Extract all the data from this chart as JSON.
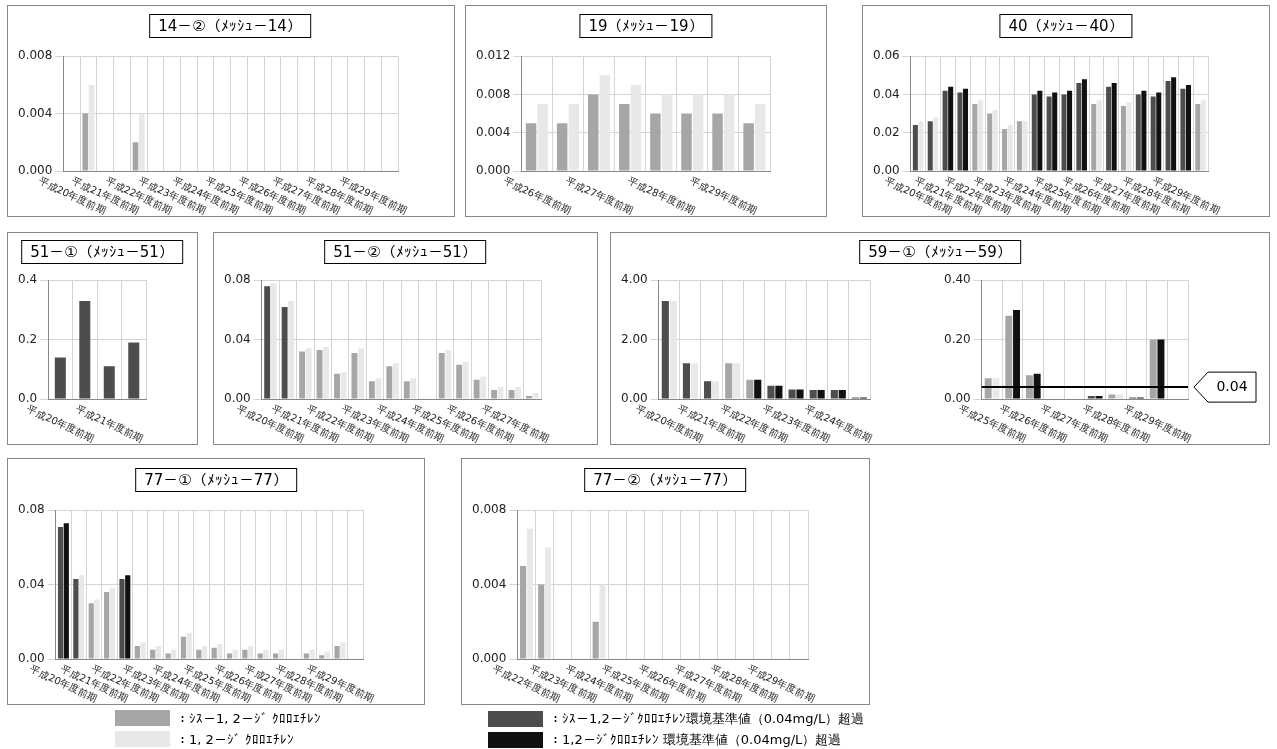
{
  "chart_data": [
    {
      "type": "bar",
      "title": "14－②（ﾒｯｼｭ－14）",
      "categories": [
        "平成20年度前期",
        null,
        "平成21年度前期",
        null,
        "平成22年度前期",
        null,
        "平成23年度前期",
        null,
        "平成24年度前期",
        null,
        "平成25年度前期",
        null,
        "平成26年度前期",
        null,
        "平成27年度前期",
        null,
        "平成28年度前期",
        null,
        "平成29年度前期",
        null
      ],
      "ylim": [
        0,
        0.008
      ],
      "yticks": [
        {
          "value": 0,
          "label": "0.000"
        },
        0.004,
        0.008
      ],
      "grid": true,
      "series": [
        {
          "color": "#a6a6a6",
          "values": [
            null,
            0.004,
            null,
            null,
            0.002,
            null,
            null,
            null,
            null,
            null,
            null,
            null,
            null,
            null,
            null,
            null,
            null,
            null,
            null,
            null
          ]
        },
        {
          "color": "#e8e8e8",
          "values": [
            null,
            0.006,
            null,
            null,
            0.004,
            null,
            null,
            null,
            null,
            null,
            null,
            null,
            null,
            null,
            null,
            null,
            null,
            null,
            null,
            null
          ]
        }
      ]
    },
    {
      "type": "bar",
      "title": "19（ﾒｯｼｭ－19）",
      "categories": [
        "平成26年度前期",
        null,
        "平成27年度前期",
        null,
        "平成28年度前期",
        null,
        "平成29年度前期",
        null
      ],
      "ylim": [
        0,
        0.012
      ],
      "yticks": [
        {
          "value": 0,
          "label": "0.000"
        },
        0.004,
        0.008,
        0.012
      ],
      "grid": true,
      "series": [
        {
          "color": "#a6a6a6",
          "values": [
            0.005,
            0.005,
            0.008,
            0.007,
            0.006,
            0.006,
            0.006,
            0.005
          ]
        },
        {
          "color": "#e8e8e8",
          "values": [
            0.007,
            0.007,
            0.01,
            0.009,
            0.008,
            0.008,
            0.008,
            0.007
          ]
        }
      ]
    },
    {
      "type": "bar",
      "title": "40（ﾒｯｼｭ－40）",
      "categories": [
        "平成20年度前期",
        null,
        "平成21年度前期",
        null,
        "平成22年度前期",
        null,
        "平成23年度前期",
        null,
        "平成24年度前期",
        null,
        "平成25年度前期",
        null,
        "平成26年度前期",
        null,
        "平成27年度前期",
        null,
        "平成28年度前期",
        null,
        "平成29年度前期",
        null
      ],
      "ylim": [
        0,
        0.06
      ],
      "yticks": [
        {
          "value": 0,
          "label": "0.00"
        },
        0.02,
        0.04,
        0.06
      ],
      "grid": true,
      "series": [
        {
          "colors": [
            "#4d4d4d",
            "#4d4d4d",
            "#4d4d4d",
            "#4d4d4d",
            "#a6a6a6",
            "#a6a6a6",
            "#a6a6a6",
            "#a6a6a6",
            "#4d4d4d",
            "#4d4d4d",
            "#4d4d4d",
            "#4d4d4d",
            "#a6a6a6",
            "#4d4d4d",
            "#a6a6a6",
            "#4d4d4d",
            "#4d4d4d",
            "#4d4d4d",
            "#4d4d4d",
            "#a6a6a6"
          ],
          "values": [
            0.024,
            0.026,
            0.042,
            0.041,
            0.035,
            0.03,
            0.022,
            0.026,
            0.04,
            0.039,
            0.04,
            0.046,
            0.035,
            0.044,
            0.034,
            0.04,
            0.039,
            0.047,
            0.043,
            0.035
          ]
        },
        {
          "colors": [
            "#e8e8e8",
            "#e8e8e8",
            "#111111",
            "#111111",
            "#e8e8e8",
            "#e8e8e8",
            "#e8e8e8",
            "#e8e8e8",
            "#111111",
            "#111111",
            "#111111",
            "#111111",
            "#e8e8e8",
            "#111111",
            "#e8e8e8",
            "#111111",
            "#111111",
            "#111111",
            "#111111",
            "#e8e8e8"
          ],
          "values": [
            0.026,
            0.028,
            0.044,
            0.043,
            0.037,
            0.032,
            0.024,
            0.026,
            0.042,
            0.041,
            0.042,
            0.048,
            0.037,
            0.046,
            0.036,
            0.042,
            0.041,
            0.049,
            0.045,
            0.037
          ]
        }
      ]
    },
    {
      "type": "bar",
      "title": "51－①（ﾒｯｼｭ－51）",
      "categories": [
        "平成20年度前期",
        null,
        "平成21年度前期",
        null
      ],
      "ylim": [
        0,
        0.4
      ],
      "yticks": [
        {
          "value": 0,
          "label": "0.0"
        },
        0.2,
        0.4
      ],
      "grid": true,
      "values": [
        0.14,
        0.33,
        0.11,
        0.19
      ],
      "color": "#4d4d4d"
    },
    {
      "type": "bar",
      "title": "51－②（ﾒｯｼｭ－51）",
      "categories": [
        "平成20年度前期",
        null,
        "平成21年度前期",
        null,
        "平成22年度前期",
        null,
        "平成23年度前期",
        null,
        "平成24年度前期",
        null,
        "平成25年度前期",
        null,
        "平成26年度前期",
        null,
        "平成27年度前期",
        null
      ],
      "ylim": [
        0,
        0.08
      ],
      "yticks": [
        {
          "value": 0,
          "label": "0.00"
        },
        0.04,
        0.08
      ],
      "grid": true,
      "series": [
        {
          "colors": [
            "#4d4d4d",
            "#4d4d4d",
            "#a6a6a6",
            "#a6a6a6",
            "#a6a6a6",
            "#a6a6a6",
            "#a6a6a6",
            "#a6a6a6",
            "#a6a6a6",
            "#a6a6a6",
            "#a6a6a6",
            "#a6a6a6",
            "#a6a6a6",
            "#a6a6a6",
            "#a6a6a6",
            "#a6a6a6"
          ],
          "values": [
            0.076,
            0.062,
            0.032,
            0.033,
            0.017,
            0.031,
            0.012,
            0.022,
            0.012,
            null,
            0.031,
            0.023,
            0.013,
            0.006,
            0.006,
            0.002
          ]
        },
        {
          "color": "#e8e8e8",
          "values": [
            0.078,
            0.066,
            0.034,
            0.035,
            0.018,
            0.034,
            0.014,
            0.024,
            0.014,
            null,
            0.033,
            0.025,
            0.015,
            0.008,
            0.008,
            0.004
          ]
        }
      ]
    },
    {
      "type": "bar",
      "title": "59－①（ﾒｯｼｭ－59）",
      "categories": [
        "平成20年度前期",
        null,
        "平成21年度前期",
        null,
        "平成22年度前期",
        null,
        "平成23年度前期",
        null,
        "平成24年度前期",
        null
      ],
      "ylim": [
        0,
        4
      ],
      "yticks": [
        {
          "value": 0,
          "label": "0.00"
        },
        {
          "value": 2,
          "label": "2.00"
        },
        {
          "value": 4,
          "label": "4.00"
        }
      ],
      "grid": true,
      "series": [
        {
          "colors": [
            "#4d4d4d",
            "#4d4d4d",
            "#4d4d4d",
            "#a6a6a6",
            "#a6a6a6",
            "#4d4d4d",
            "#4d4d4d",
            "#4d4d4d",
            "#4d4d4d",
            "#4d4d4d"
          ],
          "values": [
            3.3,
            1.2,
            0.6,
            1.2,
            0.65,
            0.45,
            0.32,
            0.3,
            0.3,
            0.05
          ]
        },
        {
          "colors": [
            "#e8e8e8",
            "#e8e8e8",
            "#e8e8e8",
            "#e8e8e8",
            "#111111",
            "#111111",
            "#111111",
            "#111111",
            "#111111",
            "#111111"
          ],
          "values": [
            3.3,
            1.2,
            0.6,
            1.2,
            0.65,
            0.45,
            0.32,
            0.3,
            0.3,
            0.05
          ]
        }
      ]
    },
    {
      "type": "bar",
      "categories": [
        "平成25年度前期",
        null,
        "平成26年度前期",
        null,
        "平成27年度前期",
        null,
        "平成28年度前期",
        null,
        "平成29年度前期",
        null
      ],
      "ylim": [
        0,
        0.4
      ],
      "yticks": [
        {
          "value": 0,
          "label": "0.00"
        },
        {
          "value": 0.2,
          "label": "0.20"
        },
        {
          "value": 0.4,
          "label": "0.40"
        }
      ],
      "grid": true,
      "ref_lines": [
        {
          "axis": "y",
          "value": 0.04,
          "label": "0.04",
          "color": "#000000"
        }
      ],
      "series": [
        {
          "colors": [
            "#a6a6a6",
            "#a6a6a6",
            "#a6a6a6",
            "#a6a6a6",
            "#a6a6a6",
            "#4d4d4d",
            "#a6a6a6",
            "#4d4d4d",
            "#a6a6a6",
            "#a6a6a6"
          ],
          "values": [
            0.07,
            0.28,
            0.08,
            null,
            null,
            0.01,
            0.015,
            0.005,
            0.2,
            null
          ]
        },
        {
          "colors": [
            "#e8e8e8",
            "#111111",
            "#111111",
            "#e8e8e8",
            "#e8e8e8",
            "#111111",
            "#e8e8e8",
            "#111111",
            "#111111",
            "#e8e8e8"
          ],
          "values": [
            0.07,
            0.3,
            0.085,
            null,
            null,
            0.01,
            0.015,
            0.005,
            0.2,
            null
          ]
        }
      ]
    },
    {
      "type": "bar",
      "title": "77－①（ﾒｯｼｭ－77）",
      "categories": [
        "平成20年度前期",
        null,
        "平成21年度前期",
        null,
        "平成22年度前期",
        null,
        "平成23年度前期",
        null,
        "平成24年度前期",
        null,
        "平成25年度前期",
        null,
        "平成26年度前期",
        null,
        "平成27年度前期",
        null,
        "平成28年度前期",
        null,
        "平成29年度前期",
        null
      ],
      "ylim": [
        0,
        0.08
      ],
      "yticks": [
        {
          "value": 0,
          "label": "0.00"
        },
        0.04,
        0.08
      ],
      "grid": true,
      "series": [
        {
          "colors": [
            "#4d4d4d",
            "#4d4d4d",
            "#a6a6a6",
            "#a6a6a6",
            "#4d4d4d",
            "#a6a6a6",
            "#a6a6a6",
            "#a6a6a6",
            "#a6a6a6",
            "#a6a6a6",
            "#a6a6a6",
            "#a6a6a6",
            "#a6a6a6",
            "#a6a6a6",
            "#a6a6a6",
            "#a6a6a6",
            "#a6a6a6",
            "#a6a6a6",
            "#a6a6a6",
            "#a6a6a6"
          ],
          "values": [
            0.071,
            0.043,
            0.03,
            0.036,
            0.043,
            0.007,
            0.005,
            0.003,
            0.012,
            0.005,
            0.006,
            0.003,
            0.005,
            0.003,
            0.003,
            null,
            0.003,
            0.002,
            0.007,
            null
          ]
        },
        {
          "colors": [
            "#111111",
            "#e8e8e8",
            "#e8e8e8",
            "#e8e8e8",
            "#111111",
            "#e8e8e8",
            "#e8e8e8",
            "#e8e8e8",
            "#e8e8e8",
            "#e8e8e8",
            "#e8e8e8",
            "#e8e8e8",
            "#e8e8e8",
            "#e8e8e8",
            "#e8e8e8",
            "#e8e8e8",
            "#e8e8e8",
            "#e8e8e8",
            "#e8e8e8",
            "#e8e8e8"
          ],
          "values": [
            0.073,
            0.045,
            0.032,
            0.038,
            0.045,
            0.009,
            0.007,
            0.005,
            0.014,
            0.007,
            0.008,
            0.005,
            0.007,
            0.005,
            0.005,
            null,
            0.005,
            0.004,
            0.009,
            null
          ]
        }
      ]
    },
    {
      "type": "bar",
      "title": "77－②（ﾒｯｼｭ－77）",
      "categories": [
        "平成22年度前期",
        null,
        "平成23年度前期",
        null,
        "平成24年度前期",
        null,
        "平成25年度前期",
        null,
        "平成26年度前期",
        null,
        "平成27年度前期",
        null,
        "平成28年度前期",
        null,
        "平成29年度前期",
        null
      ],
      "ylim": [
        0,
        0.008
      ],
      "yticks": [
        {
          "value": 0,
          "label": "0.000"
        },
        0.004,
        0.008
      ],
      "grid": true,
      "series": [
        {
          "color": "#a6a6a6",
          "values": [
            0.005,
            0.004,
            null,
            null,
            0.002,
            null,
            null,
            null,
            null,
            null,
            null,
            null,
            null,
            null,
            null,
            null
          ]
        },
        {
          "color": "#e8e8e8",
          "values": [
            0.007,
            0.006,
            null,
            null,
            0.004,
            null,
            null,
            null,
            null,
            null,
            null,
            null,
            null,
            null,
            null,
            null
          ]
        }
      ]
    },
    {
      "type": "other",
      "annotations": [
        "：ｼｽ－1, 2－ｼﾞ ｸﾛﾛｴﾁﾚﾝ",
        "：ｼｽ－1,2－ｼﾞｸﾛﾛｴﾁﾚﾝ環境基準値（0.04mg/L）超過",
        "：1, 2－ｼﾞ ｸﾛﾛｴﾁﾚﾝ",
        "：1,2－ｼﾞｸﾛﾛｴﾁﾚﾝ 環境基準値（0.04mg/L）超過"
      ],
      "colors": [
        "#a6a6a6",
        "#4d4d4d",
        "#e8e8e8",
        "#111111"
      ]
    }
  ]
}
